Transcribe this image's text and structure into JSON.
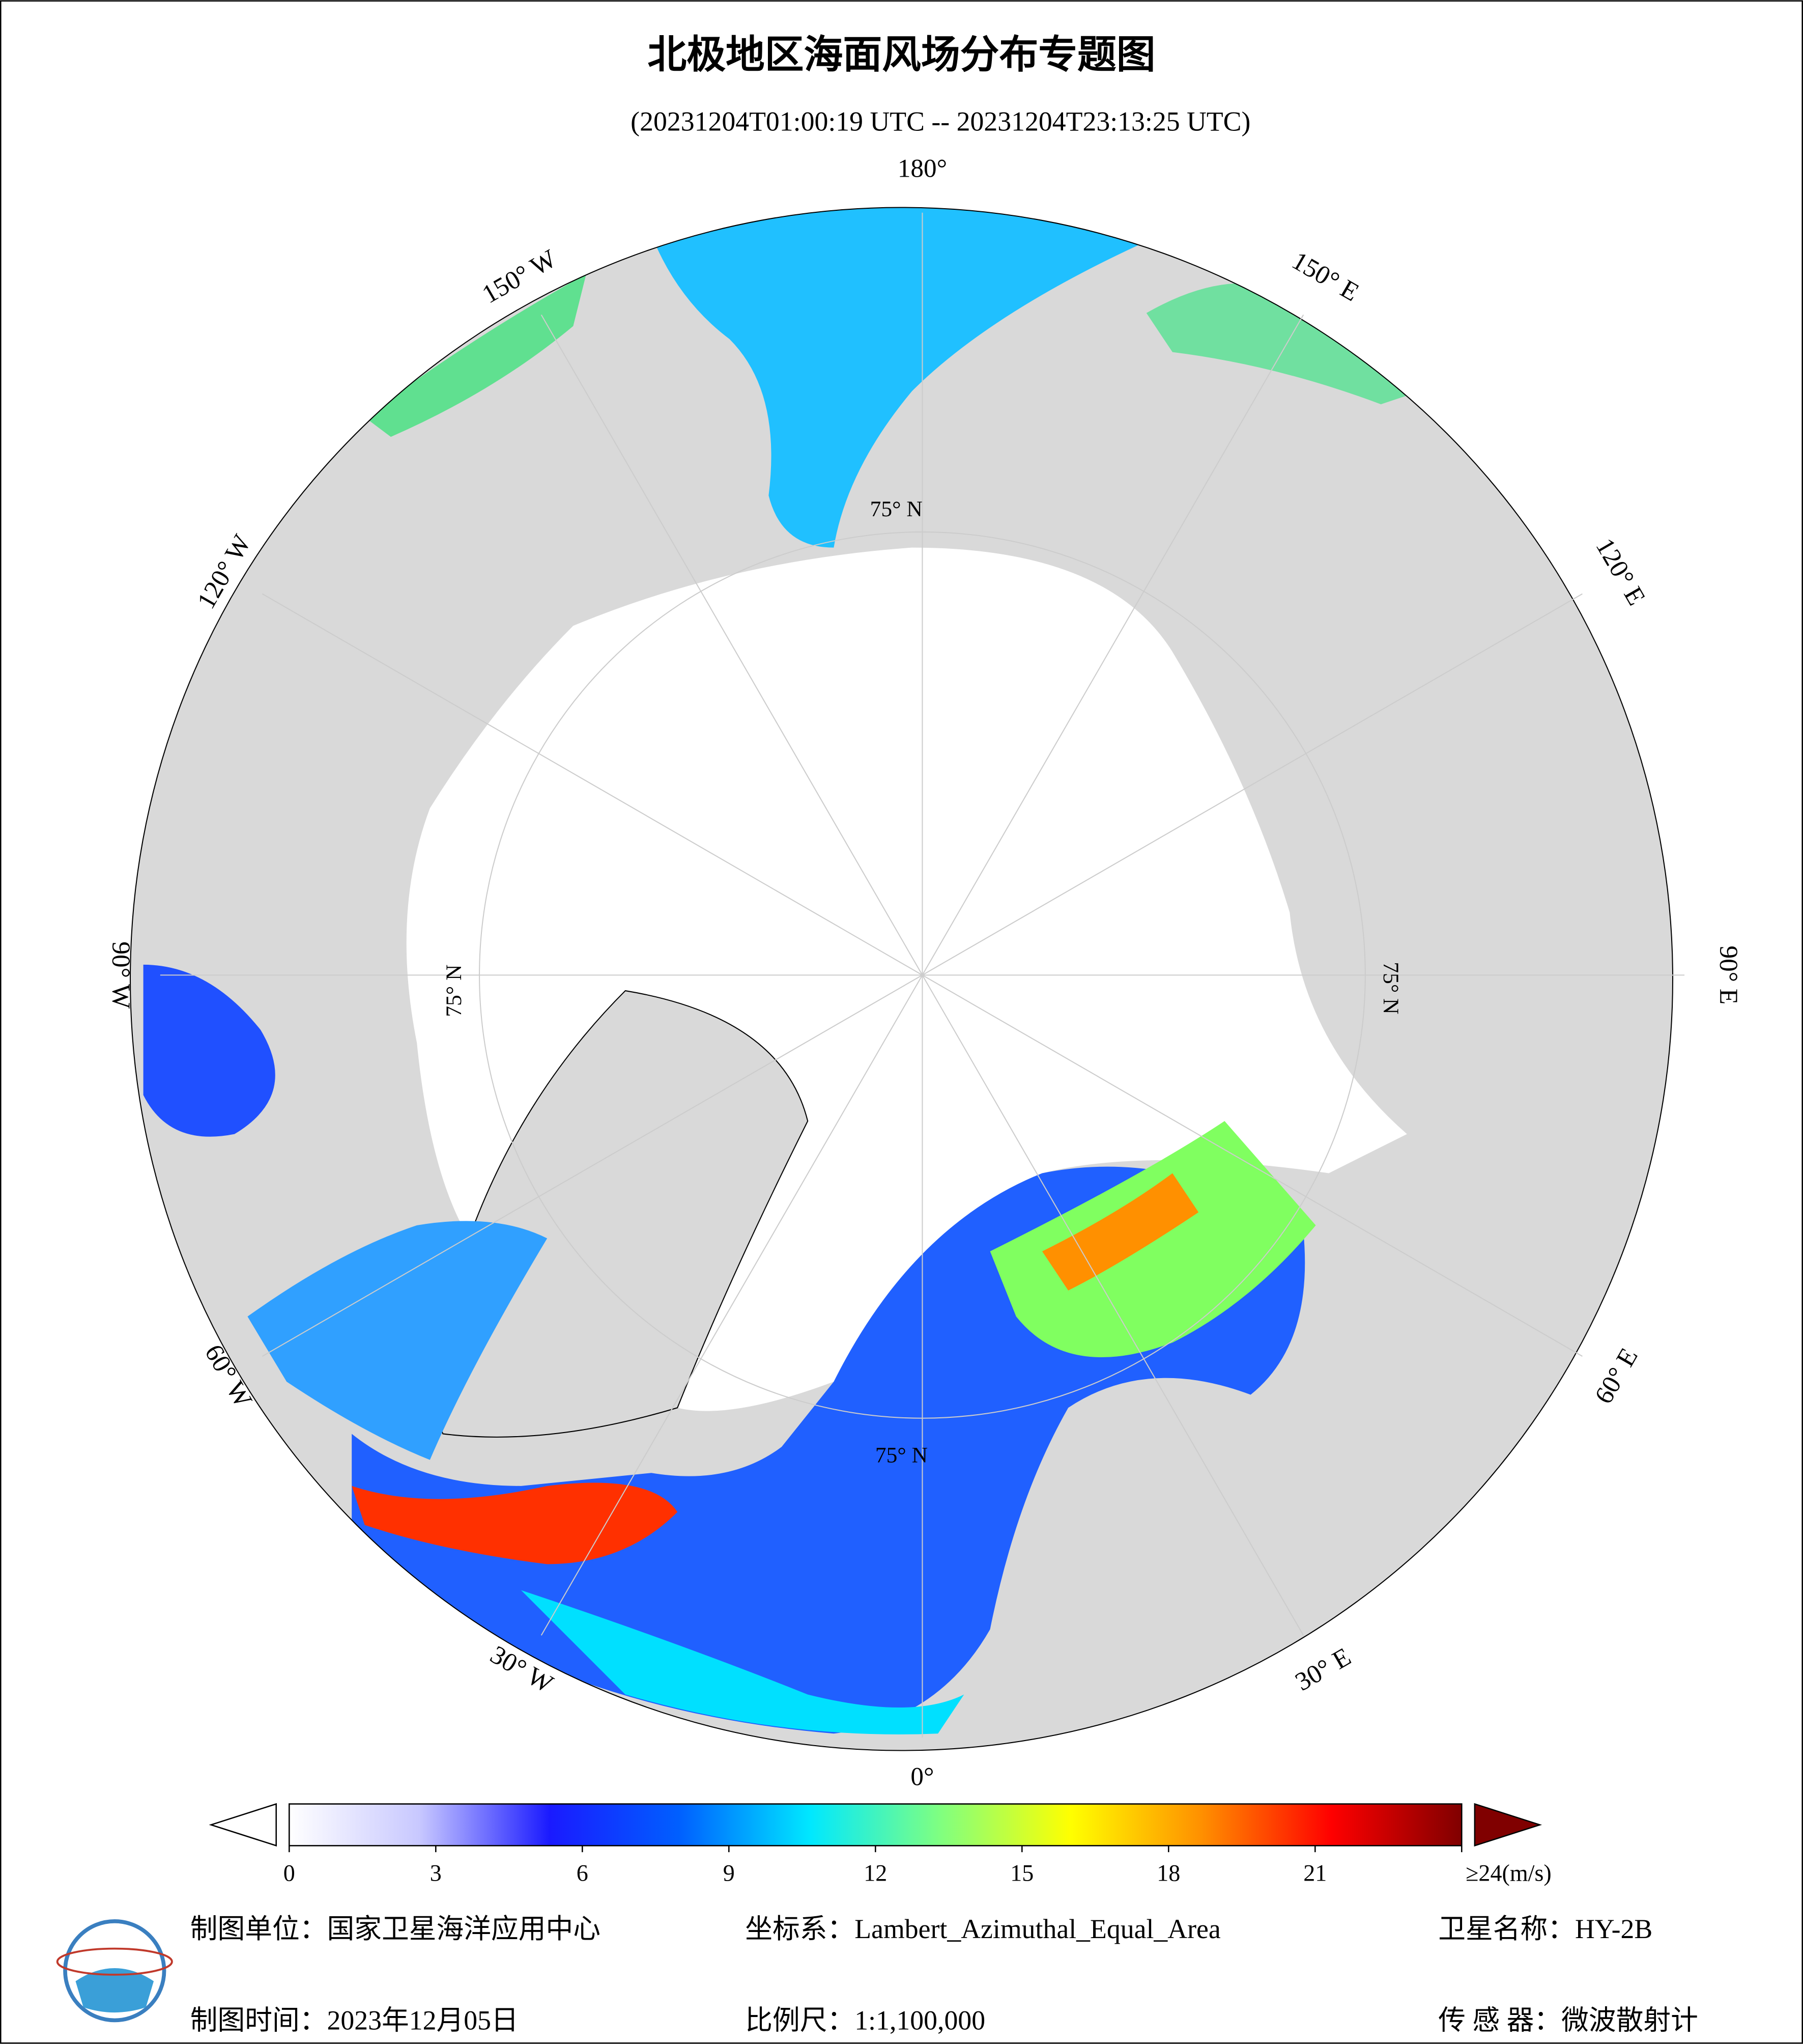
{
  "title": "北极地区海面风场分布专题图",
  "subtitle": "(20231204T01:00:19 UTC -- 20231204T23:13:25 UTC)",
  "map": {
    "longitude_labels": [
      "180°",
      "150° E",
      "120° E",
      "90° E",
      "60° E",
      "30° E",
      "0°",
      "30° W",
      "60° W",
      "90° W",
      "120° W",
      "150° W"
    ],
    "latitude_labels": [
      "75° N",
      "75° N",
      "75° N",
      "75° N"
    ]
  },
  "colorbar": {
    "range": [
      0,
      24
    ],
    "ticks": [
      0,
      3,
      6,
      9,
      12,
      15,
      18,
      21,
      {
        "value": 24,
        "label": "≥24(m/s)"
      }
    ],
    "colors": [
      "#ffffff",
      "#c8c8ff",
      "#1a1aff",
      "#0060ff",
      "#00e8ff",
      "#80ff80",
      "#ffff00",
      "#ff9000",
      "#ff0000",
      "#800000"
    ]
  },
  "footer": {
    "producer": "制图单位：国家卫星海洋应用中心",
    "projection": "坐标系：Lambert_Azimuthal_Equal_Area",
    "satellite": "卫星名称：HY-2B",
    "date": "制图时间：2023年12月05日",
    "scale": "比例尺：1:1,100,000",
    "sensor": "传 感 器：微波散射计"
  }
}
